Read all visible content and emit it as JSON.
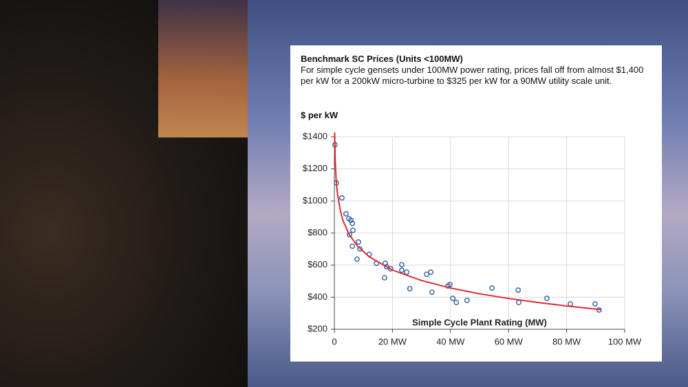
{
  "chart_data": {
    "type": "scatter",
    "title": "Benchmark SC Prices (Units <100MW)",
    "subtitle": "For simple cycle gensets under 100MW power rating, prices fall off from almost $1,400 per kW for a 200kW micro-turbine to $325 per kW for a 90MW utility scale unit.",
    "ylabel": "$ per kW",
    "xlabel": "Simple Cycle Plant Rating (MW)",
    "xlim": [
      0,
      100
    ],
    "ylim": [
      200,
      1400
    ],
    "xticks": [
      0,
      {
        "value": 20,
        "label": "20 MW"
      },
      {
        "value": 40,
        "label": "40 MW"
      },
      {
        "value": 60,
        "label": "60 MW"
      },
      {
        "value": 80,
        "label": "80 MW"
      },
      {
        "value": 100,
        "label": "100 MW"
      }
    ],
    "yticks": [
      {
        "value": 200,
        "label": "$200"
      },
      {
        "value": 400,
        "label": "$400"
      },
      {
        "value": 600,
        "label": "$600"
      },
      {
        "value": 800,
        "label": "$800"
      },
      {
        "value": 1000,
        "label": "$1000"
      },
      {
        "value": 1200,
        "label": "$1200"
      },
      {
        "value": 1400,
        "label": "$1400"
      }
    ],
    "grid": true,
    "series": [
      {
        "type": "scatter",
        "color": "#2a5ea8",
        "x": [
          0.2,
          0.7,
          2.6,
          4,
          5,
          5.7,
          6.2,
          5.2,
          6.4,
          6.2,
          8.3,
          8.8,
          7.8,
          12,
          14.5,
          17.5,
          18,
          19.4,
          17.3,
          23.2,
          23.2,
          24.9,
          26,
          31.8,
          33.2,
          33.6,
          39.1,
          39.8,
          40.8,
          42,
          45.7,
          54.3,
          63.3,
          63.5,
          73.2,
          81.3,
          89.8,
          91.2
        ],
        "values": [
          1350,
          1113,
          1019,
          920,
          890,
          880,
          860,
          790,
          817,
          718,
          744,
          701,
          637,
          667,
          611,
          611,
          590,
          577,
          521,
          603,
          568,
          556,
          453,
          543,
          556,
          431,
          470,
          479,
          393,
          367,
          380,
          457,
          444,
          367,
          393,
          358,
          358,
          320
        ]
      },
      {
        "type": "line",
        "color": "#e0282e",
        "x": [
          0.1,
          0.3,
          0.6,
          1,
          2,
          3,
          5,
          8,
          12,
          20,
          30,
          40,
          50,
          60,
          70,
          80,
          92
        ],
        "values": [
          1428,
          1250,
          1138,
          1055,
          943,
          877,
          794,
          718,
          652,
          569,
          504,
          457,
          421,
          392,
          367,
          345,
          322
        ]
      }
    ]
  }
}
